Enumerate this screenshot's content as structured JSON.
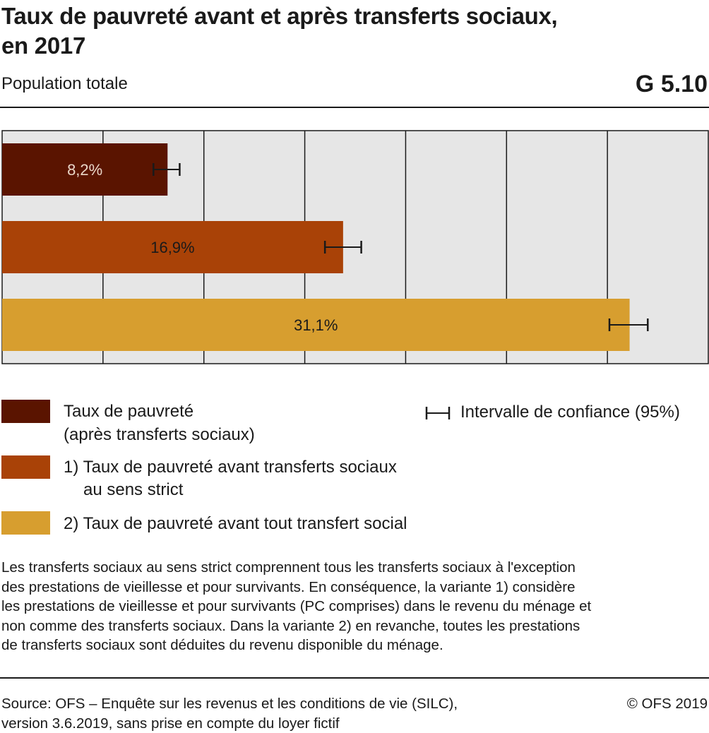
{
  "header": {
    "title": "Taux de pauvreté avant et après transferts sociaux, en 2017",
    "subtitle": "Population totale",
    "code": "G 5.10"
  },
  "colors": {
    "after_transfers": "#5a1400",
    "before_strict": "#a94207",
    "before_all": "#d79e2f",
    "plot_background": "#e6e6e6",
    "grid": "#1a1a1a"
  },
  "chart_data": {
    "type": "bar",
    "orientation": "horizontal",
    "xlim": [
      0,
      35
    ],
    "grid": true,
    "categories": [
      "Taux de pauvreté (après transferts sociaux)",
      "1) Taux de pauvreté avant transferts sociaux au sens strict",
      "2) Taux de pauvreté avant tout transfert social"
    ],
    "values": [
      8.2,
      16.9,
      31.1
    ],
    "data_labels": [
      "8,2%",
      "16,9%",
      "31,1%"
    ],
    "ci_low": [
      7.5,
      16.0,
      30.1
    ],
    "ci_high": [
      8.8,
      17.8,
      32.0
    ],
    "legend_placement": "bottom"
  },
  "legend": {
    "items": [
      {
        "line1": "Taux de pauvreté",
        "line2": "(après transferts sociaux)"
      },
      {
        "line1": "1) Taux de pauvreté avant transferts sociaux",
        "line2": "au sens strict"
      },
      {
        "line1": "2) Taux de pauvreté avant tout transfert social",
        "line2": ""
      }
    ],
    "ci_label": "Intervalle de confiance (95%)"
  },
  "note": "Les transferts sociaux au sens strict comprennent tous les transferts sociaux à l'exception\ndes prestations de vieillesse et pour survivants. En conséquence, la variante 1) considère\nles prestations de vieillesse et pour survivants (PC comprises) dans le revenu du ménage et\nnon comme des transferts sociaux. Dans la variante 2) en revanche, toutes les prestations\nde transferts sociaux sont déduites du revenu disponible du ménage.",
  "footer": {
    "source": "Source: OFS – Enquête sur les revenus et les conditions de vie (SILC),\n               version 3.6.2019, sans prise en compte du loyer fictif",
    "copyright": "© OFS 2019"
  }
}
